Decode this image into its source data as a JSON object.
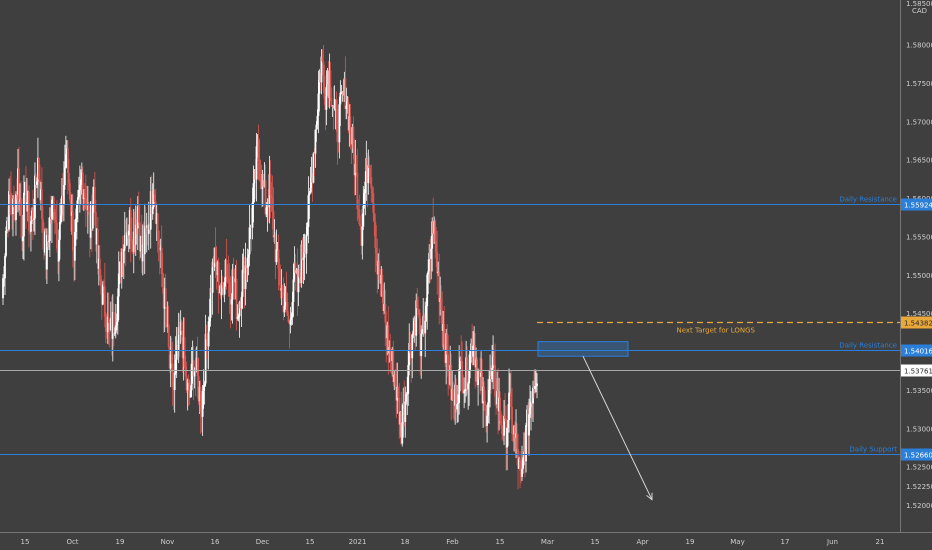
{
  "chart_data": {
    "type": "candlestick",
    "currency": "CAD",
    "y_axis": {
      "min": 1.5165,
      "max": 1.5858,
      "ticks": [
        1.52,
        1.5225,
        1.525,
        1.53,
        1.535,
        1.5375,
        1.54,
        1.545,
        1.55,
        1.555,
        1.56,
        1.565,
        1.57,
        1.575,
        1.58
      ],
      "tick_labels": [
        "1.52000",
        "1.52250",
        "1.52500",
        "1.53000",
        "1.53500",
        "",
        "1.54000",
        "1.54500",
        "1.55000",
        "1.55500",
        "1.56000",
        "1.56500",
        "1.57000",
        "1.57500",
        "1.58000"
      ],
      "top_partial_label": "1.58500"
    },
    "x_axis": {
      "tick_labels": [
        "15",
        "Oct",
        "19",
        "Nov",
        "16",
        "Dec",
        "15",
        "2021",
        "18",
        "Feb",
        "15",
        "Mar",
        "15",
        "Apr",
        "19",
        "May",
        "17",
        "Jun",
        "21"
      ]
    },
    "levels": [
      {
        "label": "Daily Resistance",
        "price": 1.55924,
        "price_label": "1.55924",
        "color": "#2b7fd8",
        "style": "solid"
      },
      {
        "label": "Next Target for LONGS",
        "price": 1.54382,
        "price_label": "1.54382",
        "color": "#e8a83a",
        "style": "dashed"
      },
      {
        "label": "Daily Resistance",
        "price": 1.54016,
        "price_label": "1.54016",
        "color": "#2b7fd8",
        "style": "solid"
      },
      {
        "label": "Daily Support",
        "price": 1.5266,
        "price_label": "1.52660",
        "color": "#2b7fd8",
        "style": "solid"
      }
    ],
    "last_price": {
      "price": 1.53761,
      "price_label": "1.53761"
    },
    "colors": {
      "up": "#ffffff",
      "down": "#d95550",
      "background": "#3f3f3f",
      "projection": "#d6d6d6",
      "zone": "#2b7fd8"
    },
    "candles_close_path": [
      1.547,
      1.556,
      1.56,
      1.558,
      1.563,
      1.556,
      1.561,
      1.556,
      1.559,
      1.565,
      1.558,
      1.552,
      1.557,
      1.56,
      1.554,
      1.558,
      1.566,
      1.561,
      1.553,
      1.558,
      1.563,
      1.56,
      1.556,
      1.561,
      1.551,
      1.548,
      1.545,
      1.542,
      1.544,
      1.547,
      1.553,
      1.556,
      1.557,
      1.555,
      1.559,
      1.552,
      1.555,
      1.558,
      1.562,
      1.556,
      1.55,
      1.545,
      1.538,
      1.535,
      1.54,
      1.543,
      1.536,
      1.534,
      1.539,
      1.536,
      1.533,
      1.54,
      1.546,
      1.552,
      1.55,
      1.547,
      1.552,
      1.548,
      1.55,
      1.545,
      1.549,
      1.551,
      1.555,
      1.56,
      1.566,
      1.563,
      1.559,
      1.561,
      1.556,
      1.551,
      1.548,
      1.546,
      1.543,
      1.55,
      1.548,
      1.552,
      1.555,
      1.559,
      1.566,
      1.572,
      1.578,
      1.574,
      1.576,
      1.572,
      1.569,
      1.572,
      1.574,
      1.57,
      1.566,
      1.561,
      1.556,
      1.562,
      1.566,
      1.56,
      1.551,
      1.548,
      1.544,
      1.54,
      1.538,
      1.534,
      1.53,
      1.534,
      1.54,
      1.543,
      1.546,
      1.54,
      1.545,
      1.551,
      1.557,
      1.551,
      1.546,
      1.541,
      1.537,
      1.533,
      1.535,
      1.538,
      1.536,
      1.539,
      1.542,
      1.538,
      1.535,
      1.532,
      1.535,
      1.537,
      1.534,
      1.531,
      1.529,
      1.533,
      1.53,
      1.527,
      1.522,
      1.528,
      1.532,
      1.536,
      1.5376
    ],
    "zone": {
      "price_top": 1.5413,
      "price_bottom": 1.5394
    },
    "projection_to_price": 1.5207
  }
}
